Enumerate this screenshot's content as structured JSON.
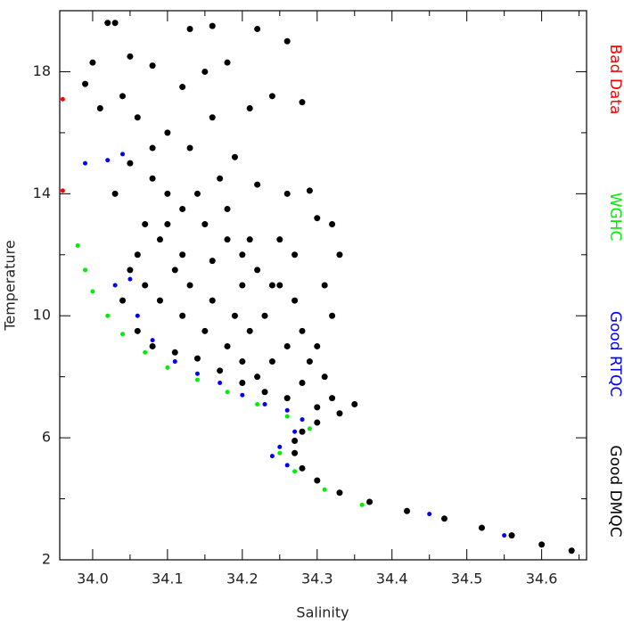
{
  "chart_data": {
    "type": "scatter",
    "xlabel": "Salinity",
    "ylabel": "Temperature",
    "xlim": [
      33.956,
      34.66
    ],
    "ylim": [
      2,
      20
    ],
    "xticks": [
      {
        "value": 34,
        "label": "34.0"
      },
      34.1,
      34.2,
      34.3,
      34.4,
      34.5,
      34.6
    ],
    "yticks": [
      2,
      6,
      10,
      14,
      18
    ],
    "xminor": [
      34.05,
      34.15,
      34.25,
      34.35,
      34.45,
      34.55,
      34.65
    ],
    "yminor": [
      4,
      8,
      12,
      16,
      20
    ],
    "legend": "right",
    "series": [
      {
        "name": "Good DMQC",
        "color": "#000000",
        "x": [
          34.35,
          34.33,
          34.3,
          34.28,
          34.27,
          34.27,
          34.28,
          34.3,
          34.33,
          34.37,
          34.42,
          34.47,
          34.52,
          34.56,
          34.6,
          34.64,
          34.02,
          34.03,
          34.05,
          34.13,
          34.16,
          34.22,
          34.0,
          34.04,
          34.08,
          34.18,
          34.26,
          34.28,
          34.24,
          34.21,
          34.12,
          34.15,
          33.99,
          34.01,
          34.06,
          34.1,
          34.13,
          34.16,
          34.19,
          34.22,
          34.26,
          34.29,
          34.3,
          34.32,
          34.33,
          34.31,
          34.32,
          34.3,
          34.31,
          34.29,
          34.05,
          34.08,
          34.1,
          34.12,
          34.15,
          34.18,
          34.2,
          34.22,
          34.25,
          34.27,
          34.28,
          34.26,
          34.24,
          34.22,
          34.2,
          34.18,
          34.15,
          34.12,
          34.09,
          34.07,
          34.06,
          34.07,
          34.09,
          34.11,
          34.13,
          34.16,
          34.19,
          34.21,
          34.23,
          34.24,
          34.21,
          34.18,
          34.14,
          34.1,
          34.06,
          34.08,
          34.11,
          34.14,
          34.17,
          34.2,
          34.23,
          34.26,
          34.3,
          34.32,
          34.28,
          34.12,
          34.16,
          34.2,
          34.17,
          34.25,
          34.27,
          34.08,
          34.03,
          34.04,
          34.05
        ],
        "values": [
          7.1,
          6.8,
          6.5,
          6.2,
          5.9,
          5.5,
          5.0,
          4.6,
          4.2,
          3.9,
          3.6,
          3.35,
          3.05,
          2.8,
          2.5,
          2.3,
          19.6,
          19.6,
          18.5,
          19.4,
          19.5,
          19.4,
          18.3,
          17.2,
          18.2,
          18.3,
          19.0,
          17.0,
          17.2,
          16.8,
          17.5,
          18.0,
          17.6,
          16.8,
          16.5,
          16.0,
          15.5,
          16.5,
          15.2,
          14.3,
          14.0,
          14.1,
          13.2,
          13.0,
          12.0,
          11.0,
          10.0,
          9.0,
          8.0,
          8.5,
          15.0,
          14.5,
          14.0,
          13.5,
          13.0,
          12.5,
          12.0,
          11.5,
          11.0,
          10.5,
          9.5,
          9.0,
          8.5,
          8.0,
          8.5,
          9.0,
          9.5,
          10.0,
          10.5,
          11.0,
          12.0,
          13.0,
          12.5,
          11.5,
          11.0,
          10.5,
          10.0,
          9.5,
          10.0,
          11.0,
          12.5,
          13.5,
          14.0,
          13.0,
          9.5,
          9.0,
          8.8,
          8.6,
          8.2,
          7.8,
          7.5,
          7.3,
          7.0,
          7.3,
          7.8,
          12.0,
          11.8,
          11.0,
          14.5,
          12.5,
          12.0,
          15.5,
          14.0,
          10.5,
          11.5
        ]
      },
      {
        "name": "Good RTQC",
        "color": "#0000ff",
        "x": [
          33.99,
          34.02,
          34.04,
          34.05,
          34.03,
          34.06,
          34.08,
          34.11,
          34.14,
          34.17,
          34.2,
          34.23,
          34.26,
          34.28,
          34.27,
          34.25,
          34.24,
          34.26,
          34.45,
          34.55
        ],
        "values": [
          15.0,
          15.1,
          15.3,
          11.2,
          11.0,
          10.0,
          9.2,
          8.5,
          8.1,
          7.8,
          7.4,
          7.1,
          6.9,
          6.6,
          6.2,
          5.7,
          5.4,
          5.1,
          3.5,
          2.8
        ]
      },
      {
        "name": "WGHC",
        "color": "#00ee00",
        "x": [
          33.98,
          33.99,
          34.0,
          34.02,
          34.04,
          34.07,
          34.1,
          34.14,
          34.18,
          34.22,
          34.26,
          34.29,
          34.25,
          34.27,
          34.31,
          34.36
        ],
        "values": [
          12.3,
          11.5,
          10.8,
          10.0,
          9.4,
          8.8,
          8.3,
          7.9,
          7.5,
          7.1,
          6.7,
          6.3,
          5.5,
          4.9,
          4.3,
          3.8
        ]
      },
      {
        "name": "Bad Data",
        "color": "#ff0000",
        "x": [
          33.96,
          33.96
        ],
        "values": [
          17.1,
          14.1
        ]
      }
    ]
  }
}
